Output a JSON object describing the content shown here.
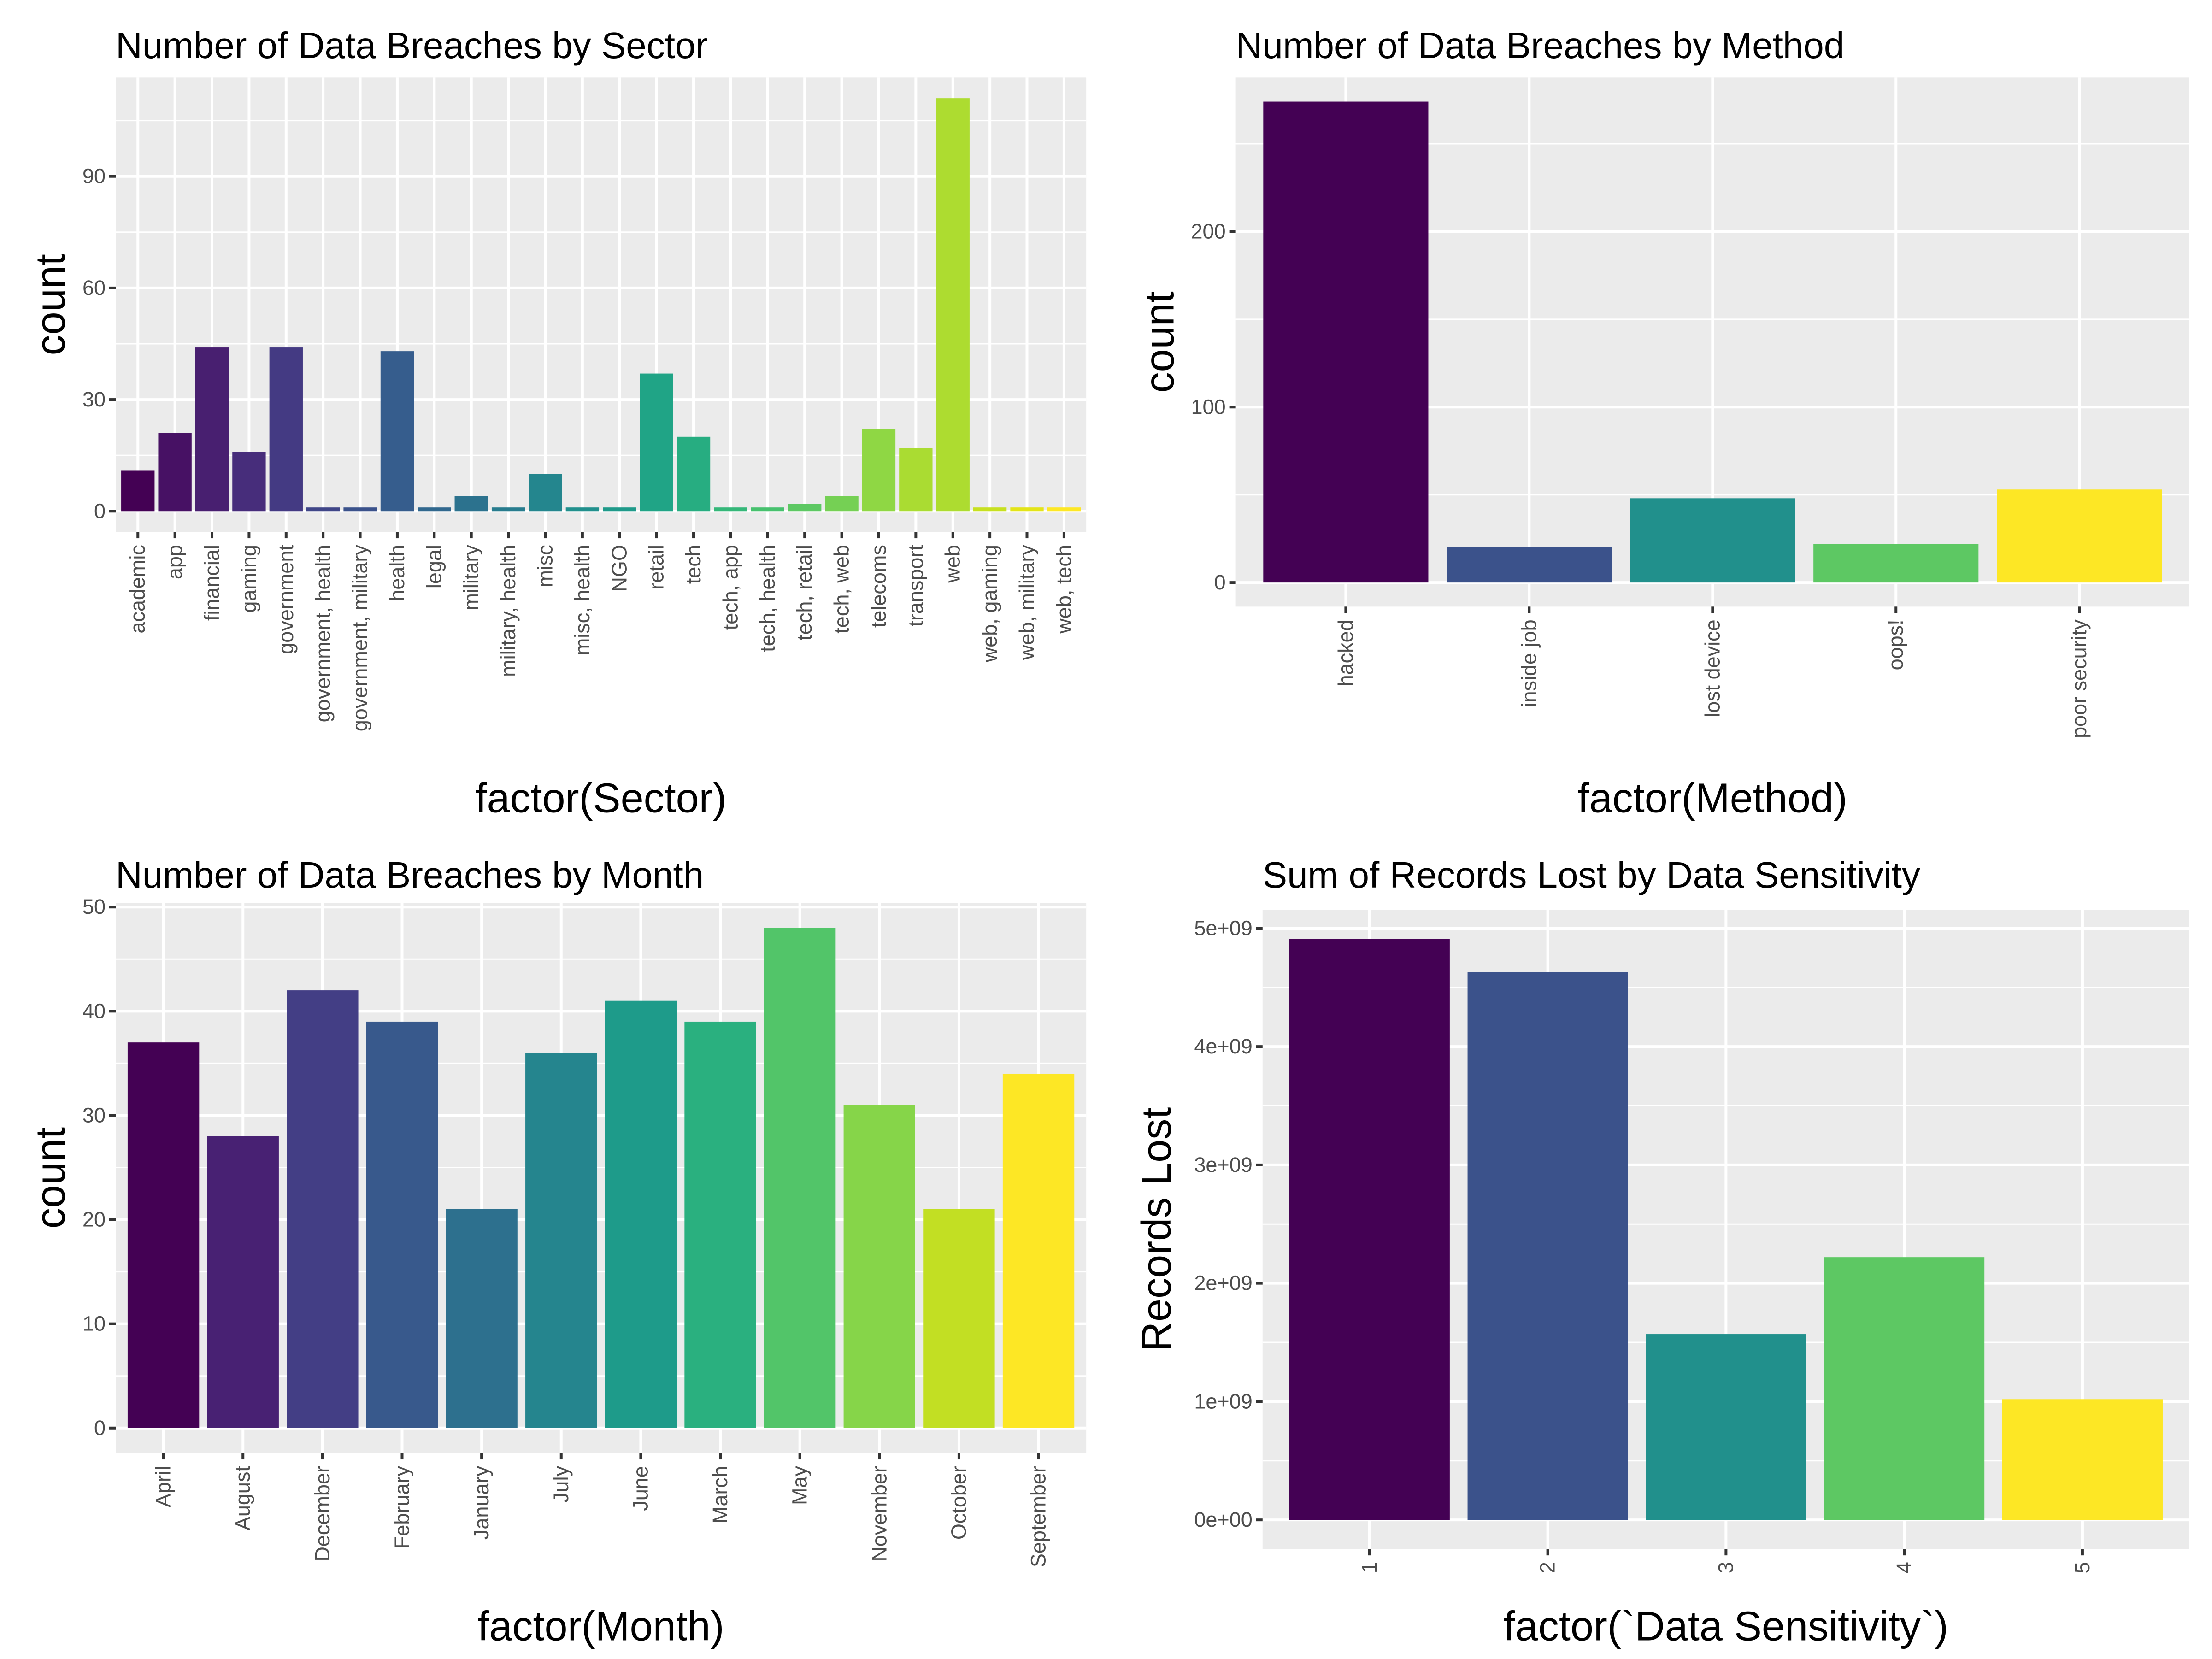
{
  "chart_data": [
    {
      "type": "bar",
      "id": "sector",
      "title": "Number of Data Breaches by Sector",
      "xlabel": "factor(Sector)",
      "ylabel": "count",
      "categories": [
        "academic",
        "app",
        "financial",
        "gaming",
        "government",
        "government, health",
        "government, military",
        "health",
        "legal",
        "military",
        "military, health",
        "misc",
        "misc, health",
        "NGO",
        "retail",
        "tech",
        "tech, app",
        "tech, health",
        "tech, retail",
        "tech, web",
        "telecoms",
        "transport",
        "web",
        "web, gaming",
        "web, military",
        "web, tech"
      ],
      "values": [
        11,
        21,
        44,
        16,
        44,
        1,
        1,
        43,
        1,
        4,
        1,
        10,
        1,
        1,
        37,
        20,
        1,
        1,
        2,
        4,
        22,
        17,
        111,
        1,
        1,
        1
      ],
      "colors": [
        "#440154",
        "#471164",
        "#481f70",
        "#472d7b",
        "#443a83",
        "#404688",
        "#3b528b",
        "#365d8d",
        "#31688e",
        "#2c728e",
        "#287c8e",
        "#24868e",
        "#21908d",
        "#1f9a8a",
        "#20a486",
        "#27ad81",
        "#35b779",
        "#47c16e",
        "#5dc863",
        "#75d054",
        "#8fd744",
        "#aadc32",
        "#addc30",
        "#c7e020",
        "#e3e418",
        "#fde725"
      ],
      "yticks": [
        0,
        30,
        60,
        90
      ],
      "ylim": [
        -5.55,
        116.55
      ],
      "grid": true,
      "legend": "none"
    },
    {
      "type": "bar",
      "id": "method",
      "title": "Number of Data Breaches by Method",
      "xlabel": "factor(Method)",
      "ylabel": "count",
      "categories": [
        "hacked",
        "inside job",
        "lost device",
        "oops!",
        "poor security"
      ],
      "values": [
        274,
        20,
        48,
        22,
        53
      ],
      "colors": [
        "#440154",
        "#3b528b",
        "#21908c",
        "#5dc863",
        "#fde725"
      ],
      "yticks": [
        0,
        100,
        200
      ],
      "ylim": [
        -13.7,
        287.7
      ],
      "grid": true,
      "legend": "none"
    },
    {
      "type": "bar",
      "id": "month",
      "title": "Number of Data Breaches by Month",
      "xlabel": "factor(Month)",
      "ylabel": "count",
      "categories": [
        "April",
        "August",
        "December",
        "February",
        "January",
        "July",
        "June",
        "March",
        "May",
        "November",
        "October",
        "September"
      ],
      "values": [
        37,
        28,
        42,
        39,
        21,
        36,
        41,
        39,
        48,
        31,
        21,
        34
      ],
      "colors": [
        "#440154",
        "#482173",
        "#433e85",
        "#38598c",
        "#2d708e",
        "#25858e",
        "#1e9b8a",
        "#2ab07f",
        "#52c569",
        "#86d549",
        "#c2df23",
        "#fde725"
      ],
      "yticks": [
        0,
        10,
        20,
        30,
        40,
        50
      ],
      "ylim": [
        -2.4,
        50.4
      ],
      "grid": true,
      "legend": "none"
    },
    {
      "type": "bar",
      "id": "sensitivity",
      "title": "Sum of Records Lost by Data Sensitivity",
      "xlabel": "factor(`Data Sensitivity`)",
      "ylabel": "Records Lost",
      "categories": [
        "1",
        "2",
        "3",
        "4",
        "5"
      ],
      "values": [
        4910000000,
        4630000000,
        1570000000,
        2220000000,
        1020000000
      ],
      "colors": [
        "#440154",
        "#3b528b",
        "#21908c",
        "#5dc863",
        "#fde725"
      ],
      "yticks": [
        0,
        1000000000,
        2000000000,
        3000000000,
        4000000000,
        5000000000
      ],
      "ytick_labels": [
        "0e+00",
        "1e+09",
        "2e+09",
        "3e+09",
        "4e+09",
        "5e+09"
      ],
      "ylim": [
        -245500000,
        5155500000
      ],
      "grid": true,
      "legend": "none"
    }
  ]
}
